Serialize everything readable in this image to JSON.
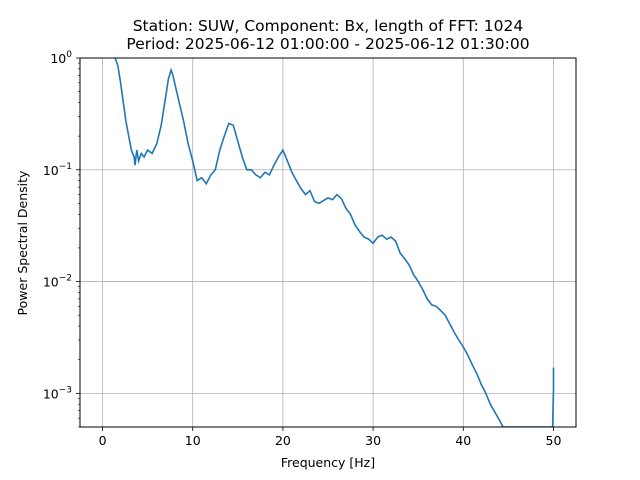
{
  "chart_data": {
    "type": "line",
    "title_line1": "Station: SUW, Component: Bx, length of FFT: 1024",
    "title_line2": "Period: 2025-06-12 01:00:00 - 2025-06-12 01:30:00",
    "xlabel": "Frequency [Hz]",
    "ylabel": "Power Spectral Density",
    "xlim": [
      -2.5,
      52.5
    ],
    "ylim": [
      0.0005,
      1
    ],
    "yscale": "log",
    "grid": true,
    "xticks": [
      0,
      10,
      20,
      30,
      40,
      50
    ],
    "xtick_labels": [
      "0",
      "10",
      "20",
      "30",
      "40",
      "50"
    ],
    "yticks": [
      0.001,
      0.01,
      0.1,
      1
    ],
    "ytick_base": "10",
    "ytick_exponents": [
      "−3",
      "−2",
      "−1",
      "0"
    ],
    "series": [
      {
        "color": "#1f77b4",
        "x": [
          1.4,
          1.7,
          2.0,
          2.3,
          2.6,
          2.9,
          3.2,
          3.5,
          3.6,
          3.8,
          4.0,
          4.3,
          4.6,
          5.0,
          5.5,
          6.0,
          6.5,
          7.0,
          7.3,
          7.6,
          7.8,
          8.1,
          8.5,
          9.0,
          9.5,
          10.0,
          10.5,
          11.0,
          11.5,
          12.0,
          12.5,
          13.0,
          13.5,
          14.0,
          14.5,
          15.0,
          15.5,
          16.0,
          16.5,
          17.0,
          17.5,
          18.0,
          18.5,
          19.0,
          19.5,
          20.0,
          20.5,
          21.0,
          21.5,
          22.0,
          22.5,
          23.0,
          23.5,
          24.0,
          24.5,
          25.0,
          25.5,
          26.0,
          26.5,
          27.0,
          27.5,
          28.0,
          28.5,
          29.0,
          29.5,
          30.0,
          30.5,
          31.0,
          31.5,
          32.0,
          32.5,
          33.0,
          33.5,
          34.0,
          34.5,
          35.0,
          35.5,
          36.0,
          36.5,
          37.0,
          37.5,
          38.0,
          38.5,
          39.0,
          39.5,
          40.0,
          40.5,
          41.0,
          41.5,
          42.0,
          42.5,
          43.0,
          43.5,
          44.0,
          44.4,
          49.9,
          50.0,
          50.0
        ],
        "y": [
          1.0,
          0.85,
          0.6,
          0.4,
          0.27,
          0.2,
          0.15,
          0.13,
          0.11,
          0.15,
          0.12,
          0.14,
          0.13,
          0.15,
          0.14,
          0.17,
          0.25,
          0.45,
          0.65,
          0.78,
          0.7,
          0.55,
          0.4,
          0.27,
          0.17,
          0.12,
          0.08,
          0.085,
          0.075,
          0.09,
          0.1,
          0.15,
          0.2,
          0.26,
          0.25,
          0.18,
          0.13,
          0.1,
          0.1,
          0.09,
          0.085,
          0.095,
          0.09,
          0.11,
          0.13,
          0.15,
          0.12,
          0.095,
          0.08,
          0.068,
          0.06,
          0.065,
          0.052,
          0.05,
          0.053,
          0.056,
          0.054,
          0.06,
          0.055,
          0.045,
          0.04,
          0.032,
          0.028,
          0.025,
          0.024,
          0.022,
          0.025,
          0.026,
          0.024,
          0.025,
          0.023,
          0.018,
          0.016,
          0.014,
          0.0115,
          0.01,
          0.0085,
          0.007,
          0.0062,
          0.006,
          0.0055,
          0.005,
          0.0042,
          0.0035,
          0.003,
          0.0026,
          0.0022,
          0.0018,
          0.0015,
          0.0012,
          0.001,
          0.0008,
          0.00068,
          0.00058,
          0.0005,
          0.0005,
          0.0011,
          0.0017
        ]
      }
    ]
  }
}
